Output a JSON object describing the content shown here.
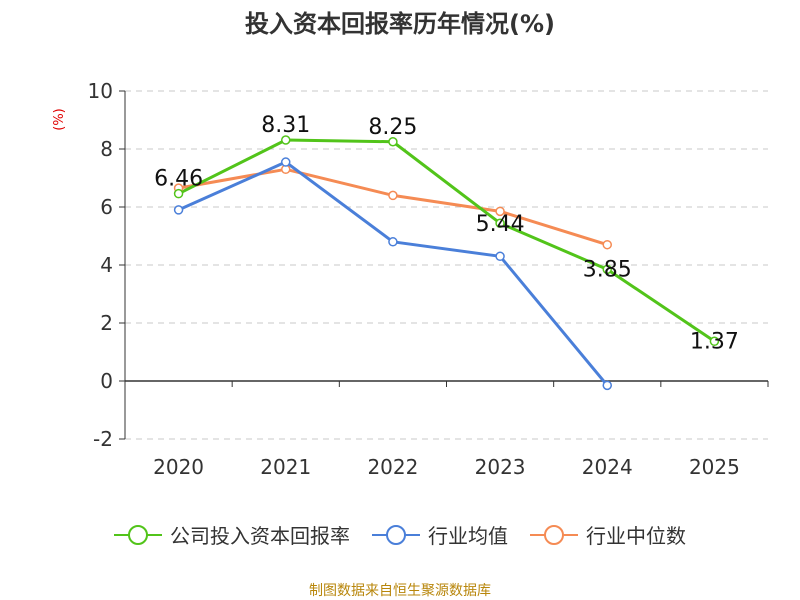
{
  "title": "投入资本回报率历年情况(%)",
  "unit_label": "(%)",
  "source": "制图数据来自恒生聚源数据库",
  "colors": {
    "company": "#52c41a",
    "industry_avg": "#4a7fd9",
    "industry_median": "#f58b54"
  },
  "chart_data": {
    "type": "line",
    "title": "投入资本回报率历年情况(%)",
    "xlabel": "",
    "ylabel": "(%)",
    "ylim": [
      -2,
      10
    ],
    "yticks": [
      10,
      8,
      6,
      4,
      2,
      0,
      -2
    ],
    "categories": [
      "2020",
      "2021",
      "2022",
      "2023",
      "2024",
      "2025"
    ],
    "series": [
      {
        "name": "公司投入资本回报率",
        "values": [
          6.46,
          8.31,
          8.25,
          5.44,
          3.85,
          1.37
        ],
        "labels": [
          "6.46",
          "8.31",
          "8.25",
          "5.44",
          "3.85",
          "1.37"
        ]
      },
      {
        "name": "行业均值",
        "values": [
          5.9,
          7.55,
          4.8,
          4.3,
          -0.15,
          null
        ]
      },
      {
        "name": "行业中位数",
        "values": [
          6.65,
          7.3,
          6.4,
          5.85,
          4.7,
          null
        ]
      }
    ],
    "legend_position": "bottom"
  }
}
